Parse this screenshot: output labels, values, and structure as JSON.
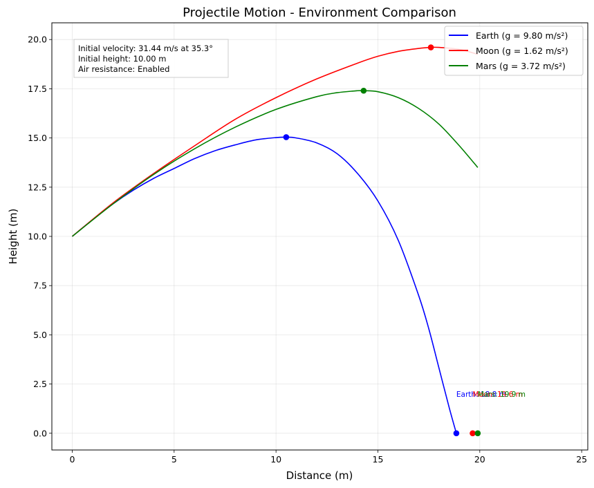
{
  "chart_data": {
    "type": "line",
    "title": "Projectile Motion - Environment Comparison",
    "xlabel": "Distance (m)",
    "ylabel": "Height (m)",
    "xlim": [
      -1.0,
      25.3
    ],
    "ylim": [
      -0.85,
      20.85
    ],
    "xticks": [
      0,
      5,
      10,
      15,
      20,
      25
    ],
    "xtick_labels": [
      "0",
      "5",
      "10",
      "15",
      "20",
      "25"
    ],
    "yticks": [
      0.0,
      2.5,
      5.0,
      7.5,
      10.0,
      12.5,
      15.0,
      17.5,
      20.0
    ],
    "ytick_labels": [
      "0.0",
      "2.5",
      "5.0",
      "7.5",
      "10.0",
      "12.5",
      "15.0",
      "17.5",
      "20.0"
    ],
    "grid": true,
    "legend_position": "top-right",
    "info_box": [
      "Initial velocity: 31.44 m/s at 35.3°",
      "Initial height: 10.00 m",
      "Air resistance: Enabled"
    ],
    "series": [
      {
        "name": "Earth (g = 9.80 m/s²)",
        "color": "#0000ff",
        "x": [
          0,
          1,
          2,
          3,
          4,
          5,
          6,
          7,
          8,
          9,
          10,
          10.5,
          11,
          12,
          13,
          14,
          15,
          16,
          17,
          17.5,
          18,
          18.5,
          18.85
        ],
        "y": [
          10.0,
          10.85,
          11.65,
          12.35,
          12.95,
          13.45,
          13.95,
          14.35,
          14.65,
          14.9,
          15.02,
          15.04,
          15.0,
          14.75,
          14.2,
          13.2,
          11.8,
          9.8,
          7.0,
          5.3,
          3.3,
          1.3,
          0.0
        ],
        "apex": [
          10.5,
          15.04
        ],
        "landing_marker": [
          18.85,
          0.0
        ],
        "landing_text": "Earth: 18.8 m"
      },
      {
        "name": "Moon (g = 1.62 m/s²)",
        "color": "#ff0000",
        "x": [
          0,
          2,
          4,
          6,
          8,
          10,
          12,
          14,
          15,
          16,
          17,
          17.6,
          18,
          19,
          19.9
        ],
        "y": [
          10.0,
          11.7,
          13.2,
          14.6,
          15.95,
          17.05,
          18.0,
          18.8,
          19.15,
          19.4,
          19.55,
          19.6,
          19.6,
          19.5,
          19.25
        ],
        "apex": [
          17.6,
          19.6
        ],
        "landing_marker": [
          19.65,
          0.0
        ],
        "landing_text": "Moon: 19.6 m"
      },
      {
        "name": "Mars (g = 3.72 m/s²)",
        "color": "#008000",
        "x": [
          0,
          2,
          4,
          6,
          8,
          10,
          12,
          13,
          14,
          14.3,
          15,
          16,
          17,
          18,
          19,
          19.9
        ],
        "y": [
          10.0,
          11.65,
          13.15,
          14.45,
          15.55,
          16.45,
          17.1,
          17.3,
          17.4,
          17.4,
          17.35,
          17.05,
          16.5,
          15.7,
          14.6,
          13.5
        ],
        "apex": [
          14.3,
          17.4
        ],
        "landing_marker": [
          19.9,
          0.0
        ],
        "landing_text": "Mars: 19.9 m"
      }
    ]
  }
}
